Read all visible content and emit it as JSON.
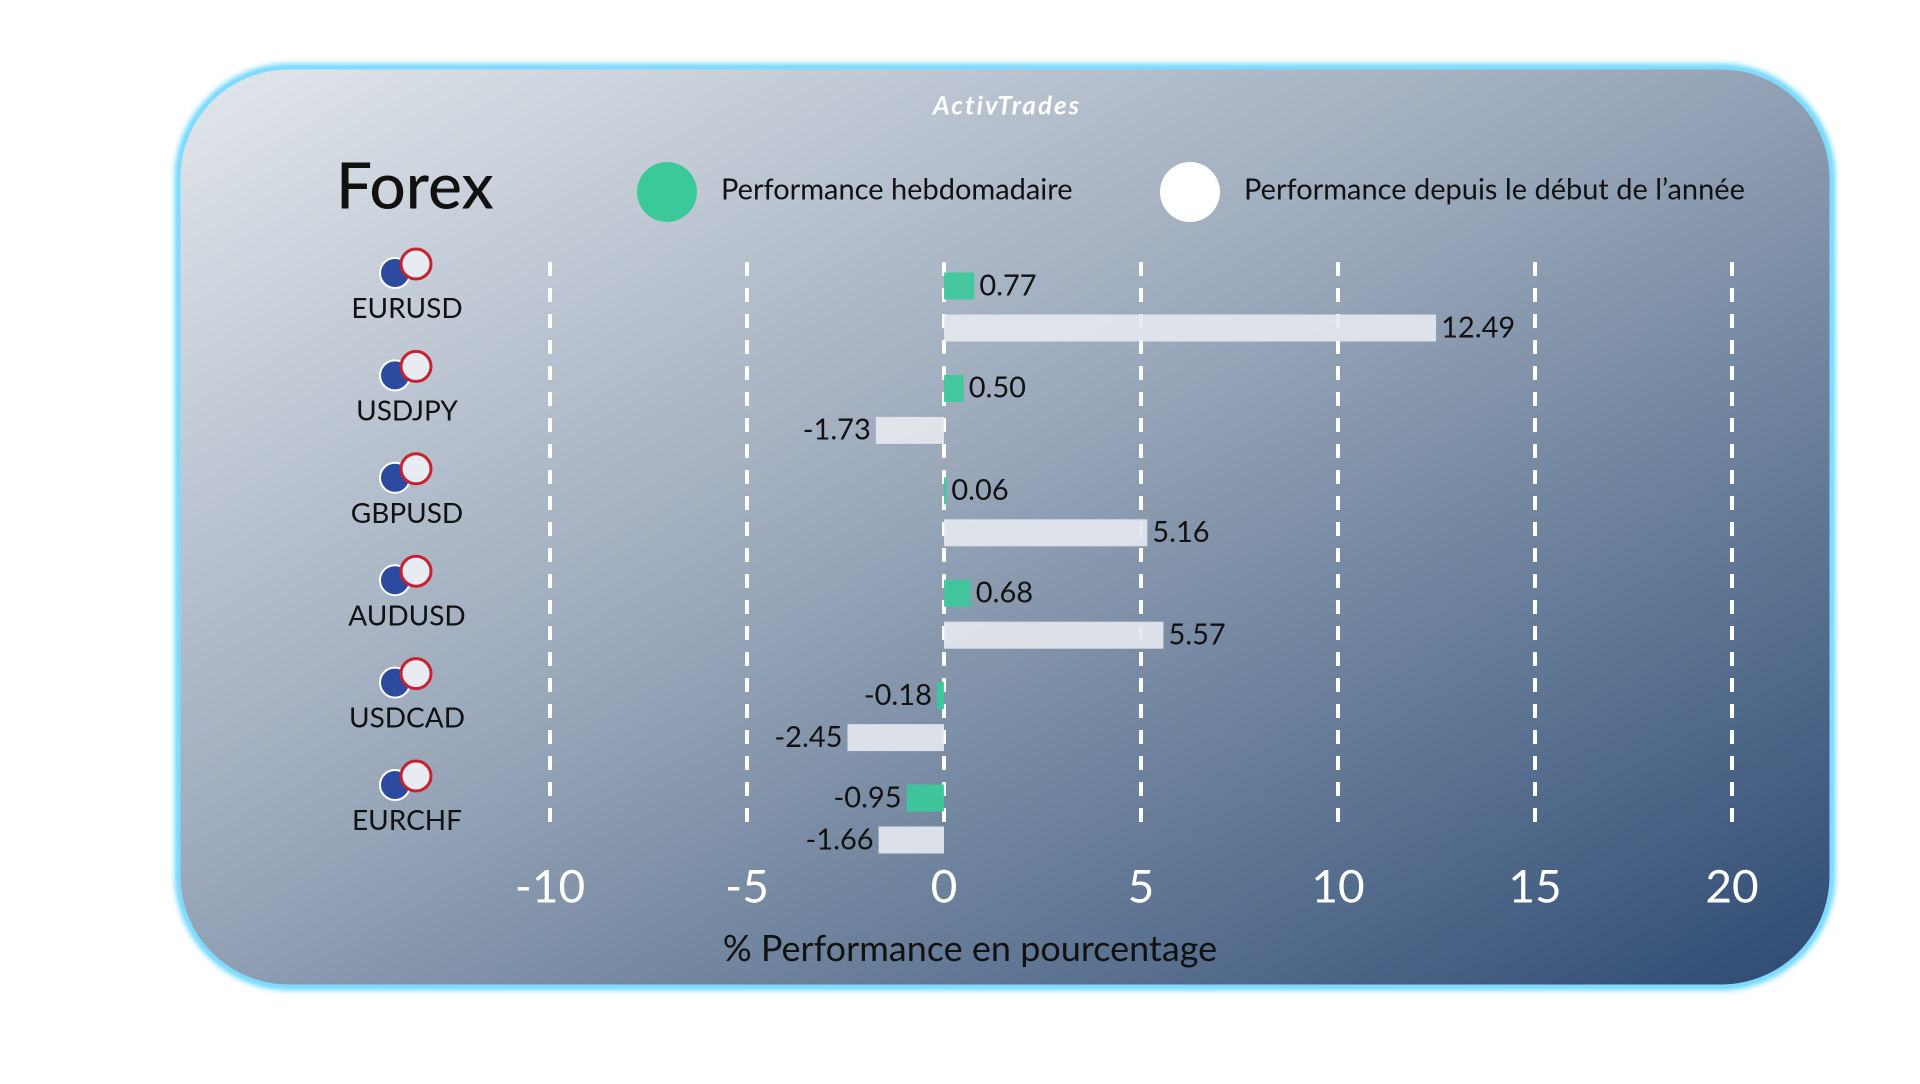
{
  "chart_data": {
    "type": "bar",
    "orientation": "horizontal",
    "brand": "ActivTrades",
    "title": "Forex",
    "x_label": "% Performance en pourcentage",
    "categories": [
      "EURUSD",
      "USDJPY",
      "GBPUSD",
      "AUDUSD",
      "USDCAD",
      "EURCHF"
    ],
    "series": [
      {
        "name": "Performance hebdomadaire",
        "color": "#3cc99a",
        "values": [
          0.77,
          0.5,
          0.06,
          0.68,
          -0.18,
          -0.95
        ],
        "value_labels": [
          "0.77",
          "0.50",
          "0.06",
          "0.68",
          "-0.18",
          "-0.95"
        ]
      },
      {
        "name": "Performance depuis le début de l’année",
        "color": "#e4e7ee",
        "values": [
          12.49,
          -1.73,
          5.16,
          5.57,
          -2.45,
          -1.66
        ],
        "value_labels": [
          "12.49",
          "-1.73",
          "5.16",
          "5.57",
          "-2.45",
          "-1.66"
        ]
      }
    ],
    "xlim": [
      -10,
      20
    ],
    "xticks": [
      -10,
      -5,
      0,
      5,
      10,
      15,
      20
    ],
    "grid": true
  }
}
